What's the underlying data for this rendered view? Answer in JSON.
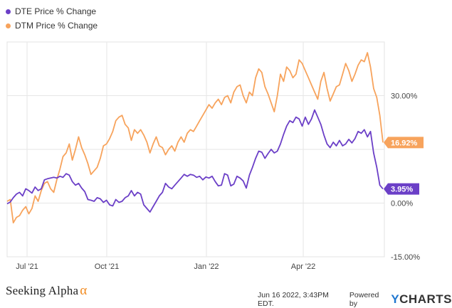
{
  "legend": [
    {
      "label": "DTE Price % Change",
      "color": "#6b3fc7"
    },
    {
      "label": "DTM Price % Change",
      "color": "#f7a35c"
    }
  ],
  "footer": {
    "brand": "Seeking Alpha",
    "brand_symbol": "α",
    "timestamp": "Jun 16 2022, 3:43PM EDT.",
    "powered_by": "Powered by",
    "provider": "CHARTS",
    "provider_initial": "Y"
  },
  "chart_data": {
    "type": "line",
    "x_ticks": [
      "Jul '21",
      "Oct '21",
      "Jan '22",
      "Apr '22"
    ],
    "y_ticks": [
      {
        "value": 30,
        "label": "30.00%"
      },
      {
        "value": 0,
        "label": "0.00%"
      },
      {
        "value": -15,
        "label": "-15.00%"
      }
    ],
    "ylim": [
      -15,
      45
    ],
    "grid": true,
    "end_labels": {
      "DTE": "3.95%",
      "DTM": "16.92%"
    },
    "series": [
      {
        "name": "DTE Price % Change",
        "color": "#6b3fc7",
        "values": [
          -0.2,
          0.3,
          1.5,
          2.5,
          3,
          2,
          4,
          3.5,
          2.8,
          4.5,
          3.5,
          4,
          6.5,
          6.8,
          7,
          7.2,
          7,
          7.5,
          7.2,
          8.2,
          7.8,
          6,
          5,
          5.5,
          4.2,
          3.2,
          1,
          0.8,
          0.5,
          1.5,
          1.2,
          0.2,
          0.8,
          -0.5,
          -0.8,
          1,
          0.2,
          0.5,
          1.5,
          2,
          3.5,
          2,
          3,
          2.5,
          -0.5,
          -1.5,
          -2.5,
          -1,
          0.5,
          2,
          3,
          5.5,
          4.5,
          4,
          5,
          6,
          7,
          8,
          7.5,
          8,
          7.8,
          7.2,
          7.5,
          6.5,
          7.3,
          7,
          7.5,
          6,
          4.8,
          5,
          8.2,
          7.8,
          4.8,
          5.3,
          7.5,
          7,
          6.2,
          4.2,
          7.8,
          10,
          12.5,
          14.5,
          14.2,
          12.5,
          13.8,
          15,
          14,
          14.5,
          16.5,
          19.2,
          21.5,
          23,
          22.5,
          24,
          23.5,
          21.5,
          24,
          22,
          23.5,
          26,
          24,
          22,
          19,
          16.5,
          15.5,
          17,
          16,
          17.5,
          16,
          16.5,
          17.8,
          16.8,
          18,
          20,
          19.5,
          20.5,
          18.5,
          20,
          14,
          10,
          5,
          3.95
        ]
      },
      {
        "name": "DTM Price % Change",
        "color": "#f7a35c",
        "values": [
          0.5,
          1,
          -5.5,
          -4,
          -3.5,
          -2,
          -1,
          -3,
          -1.5,
          2,
          0.5,
          3.5,
          5.5,
          6,
          4,
          3,
          6.5,
          9.5,
          13,
          14,
          16.5,
          12,
          15,
          18.5,
          15.5,
          13.5,
          11,
          8,
          9,
          10,
          12.5,
          16,
          16.5,
          18,
          20,
          23,
          24,
          24.5,
          22,
          21,
          17.5,
          20.5,
          19.5,
          20.5,
          19,
          17,
          14,
          16.5,
          18.5,
          16,
          15.5,
          13.5,
          15,
          16,
          14.5,
          17,
          18.5,
          17,
          19.5,
          20.5,
          20,
          21.5,
          23,
          24.5,
          26,
          27.5,
          26.5,
          28,
          29,
          27.5,
          29.5,
          30,
          28,
          31,
          32.5,
          33,
          30,
          28,
          31,
          30,
          35,
          37.5,
          36.5,
          32.5,
          30.5,
          28,
          25.5,
          30,
          36,
          34,
          38,
          37,
          35,
          36,
          40,
          39,
          37,
          35,
          33,
          31,
          29,
          34,
          36.5,
          32,
          28.5,
          30.5,
          32.5,
          33,
          36,
          39,
          37,
          34,
          36,
          38.5,
          40,
          39.5,
          42,
          38,
          32,
          29.5,
          24.5,
          16.92
        ]
      }
    ]
  }
}
